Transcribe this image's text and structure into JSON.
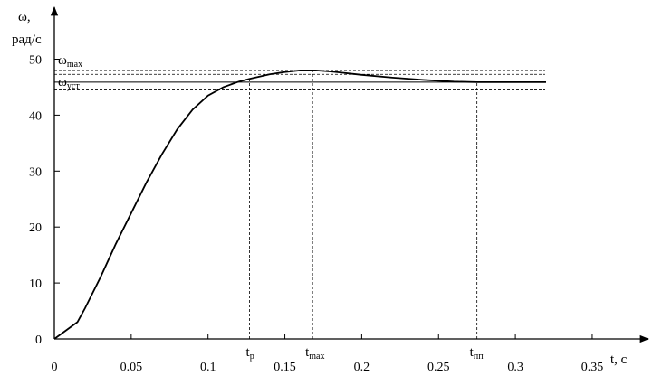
{
  "chart_data": {
    "type": "line",
    "title": "",
    "ylabel": [
      "ω,",
      "рад/с"
    ],
    "xlabel": "t, с",
    "xlim": [
      0,
      0.37
    ],
    "ylim": [
      0,
      58
    ],
    "x_ticks": [
      {
        "value": 0,
        "label": "0"
      },
      {
        "value": 0.05,
        "label": "0.05"
      },
      {
        "value": 0.1,
        "label": "0.1"
      },
      {
        "value": 0.15,
        "label": "0.15"
      },
      {
        "value": 0.2,
        "label": "0.2"
      },
      {
        "value": 0.25,
        "label": "0.25"
      },
      {
        "value": 0.3,
        "label": "0.3"
      },
      {
        "value": 0.35,
        "label": "0.35"
      }
    ],
    "y_ticks": [
      {
        "value": 0,
        "label": "0"
      },
      {
        "value": 10,
        "label": "10"
      },
      {
        "value": 20,
        "label": "20"
      },
      {
        "value": 30,
        "label": "30"
      },
      {
        "value": 40,
        "label": "40"
      },
      {
        "value": 50,
        "label": "50"
      }
    ],
    "series": [
      {
        "x": [
          0,
          0.015,
          0.02,
          0.03,
          0.04,
          0.05,
          0.06,
          0.07,
          0.08,
          0.09,
          0.1,
          0.11,
          0.12,
          0.127,
          0.14,
          0.15,
          0.16,
          0.17,
          0.18,
          0.2,
          0.22,
          0.24,
          0.26,
          0.275,
          0.3,
          0.32
        ],
        "y": [
          0,
          3,
          5.5,
          11,
          17,
          22.5,
          28,
          33,
          37.5,
          41,
          43.5,
          45,
          46,
          46.5,
          47.3,
          47.7,
          48,
          48,
          47.8,
          47.2,
          46.7,
          46.3,
          46,
          45.9,
          45.9,
          45.9
        ]
      }
    ],
    "reference_lines": {
      "omega_max": 48,
      "omega_steady": 45.9,
      "band_upper": 47.3,
      "band_lower": 44.5
    },
    "markers": {
      "t_p": 0.127,
      "t_max": 0.168,
      "t_pp": 0.275
    },
    "annotations": {
      "omega_max_main": "ω",
      "omega_max_sub": "max",
      "omega_steady_main": "ω",
      "omega_steady_sub": "уст",
      "t_p_main": "t",
      "t_p_sub": "p",
      "t_max_main": "t",
      "t_max_sub": "max",
      "t_pp_main": "t",
      "t_pp_sub": "пп"
    }
  }
}
